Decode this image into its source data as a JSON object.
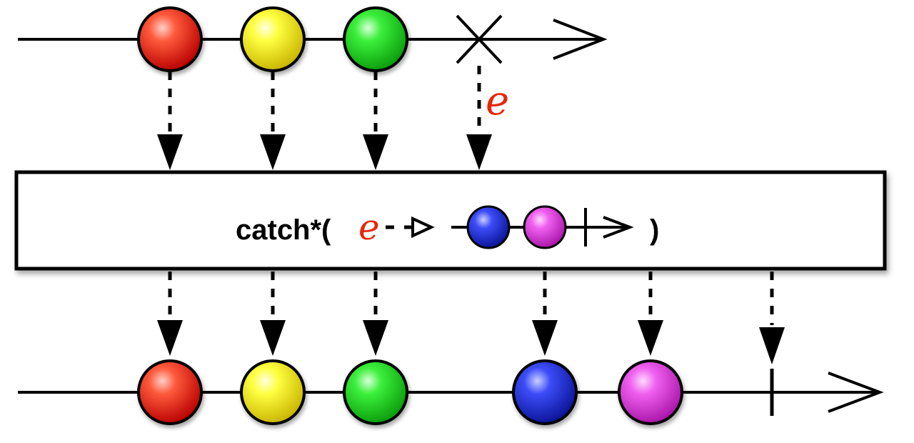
{
  "diagram": {
    "type": "marble-diagram",
    "operator_label": {
      "prefix": "catch*(",
      "error_symbol": "e",
      "suffix": ")"
    },
    "source_error_label": "e",
    "source_events": [
      {
        "id": "red",
        "color": "#e8160c"
      },
      {
        "id": "yellow",
        "color": "#f5f000"
      },
      {
        "id": "green",
        "color": "#14cf14"
      }
    ],
    "inner_events": [
      {
        "id": "blue",
        "color": "#1f2fe0"
      },
      {
        "id": "magenta",
        "color": "#e830e8"
      }
    ],
    "output_events": [
      {
        "id": "red",
        "color": "#e8160c"
      },
      {
        "id": "yellow",
        "color": "#f5f000"
      },
      {
        "id": "green",
        "color": "#14cf14"
      },
      {
        "id": "blue",
        "color": "#1f2fe0"
      },
      {
        "id": "magenta",
        "color": "#e830e8"
      }
    ],
    "source_terminal": "error",
    "output_terminal": "complete"
  }
}
